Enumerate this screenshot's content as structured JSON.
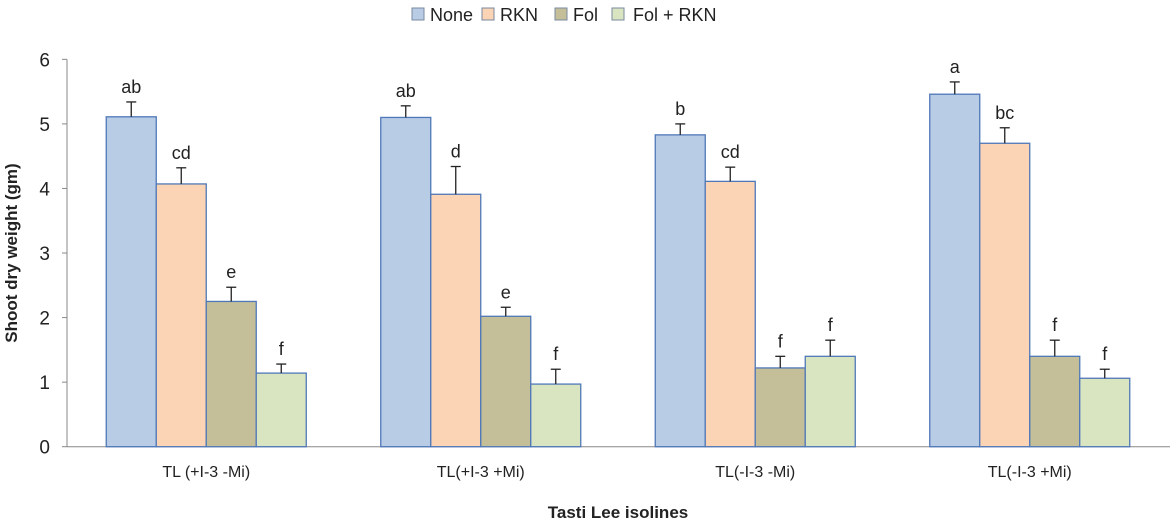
{
  "chart_data": {
    "type": "bar",
    "title": "",
    "xlabel": "Tasti Lee isolines",
    "ylabel": "Shoot dry weight (gm)",
    "ylim": [
      0,
      6
    ],
    "yticks": [
      "0",
      "1",
      "2",
      "3",
      "4",
      "5",
      "6"
    ],
    "grid": false,
    "legend_position": "top",
    "categories": [
      "TL (+I-3 -Mi)",
      "TL(+I-3 +Mi)",
      "TL(-I-3 -Mi)",
      "TL(-I-3 +Mi)"
    ],
    "series": [
      {
        "name": "None",
        "color": "#b9cce6",
        "values": [
          5.11,
          5.1,
          4.83,
          5.46
        ],
        "errors": [
          0.23,
          0.18,
          0.17,
          0.19
        ],
        "letters": [
          "ab",
          "ab",
          "b",
          "a"
        ]
      },
      {
        "name": "RKN",
        "color": "#fbd3b5",
        "values": [
          4.07,
          3.91,
          4.11,
          4.7
        ],
        "errors": [
          0.25,
          0.43,
          0.22,
          0.24
        ],
        "letters": [
          "cd",
          "d",
          "cd",
          "bc"
        ]
      },
      {
        "name": "Fol",
        "color": "#c4bf98",
        "values": [
          2.25,
          2.02,
          1.22,
          1.4
        ],
        "errors": [
          0.22,
          0.14,
          0.18,
          0.25
        ],
        "letters": [
          "e",
          "e",
          "f",
          "f"
        ]
      },
      {
        "name": "Fol + RKN",
        "color": "#d9e5c0",
        "values": [
          1.14,
          0.97,
          1.4,
          1.06
        ],
        "errors": [
          0.14,
          0.23,
          0.25,
          0.14
        ],
        "letters": [
          "f",
          "f",
          "f",
          "f"
        ]
      }
    ],
    "bar_edge_color": "#4f78b8"
  }
}
